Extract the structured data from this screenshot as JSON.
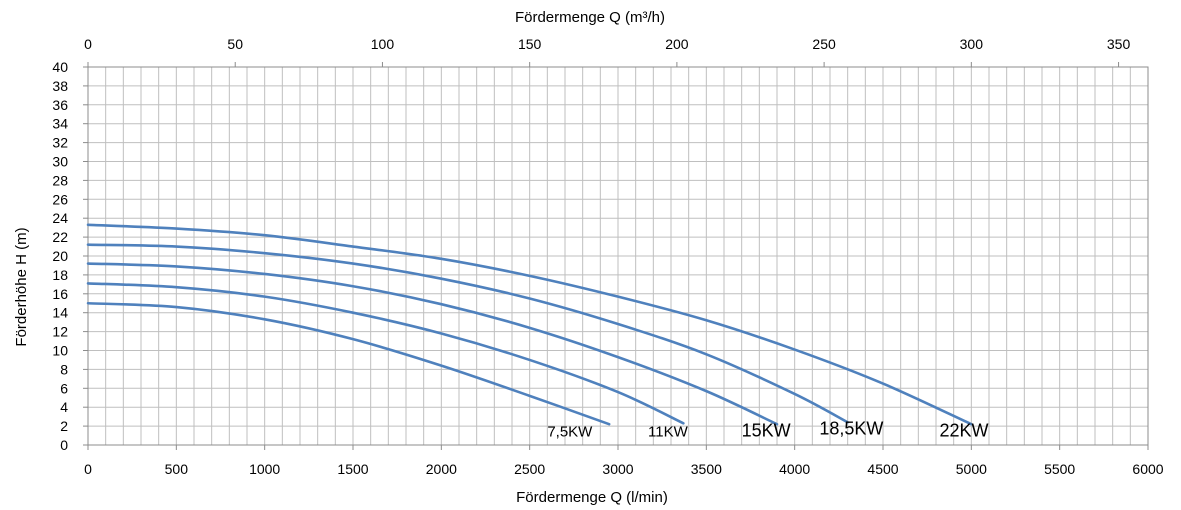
{
  "chart_data": {
    "type": "line",
    "title": "",
    "xlabel": "Fördermenge Q (l/min)",
    "x2label": "Fördermenge Q (m³/h)",
    "ylabel": "Förderhöhe H  (m)",
    "xlim": [
      0,
      6000
    ],
    "x2lim": [
      0,
      360
    ],
    "ylim": [
      0,
      40
    ],
    "x_ticks": [
      "0",
      "500",
      "1000",
      "1500",
      "2000",
      "2500",
      "3000",
      "3500",
      "4000",
      "4500",
      "5000",
      "5500",
      "6000"
    ],
    "x2_ticks": [
      "0",
      "50",
      "100",
      "150",
      "200",
      "250",
      "300",
      "350"
    ],
    "y_ticks": [
      "0",
      "2",
      "4",
      "6",
      "8",
      "10",
      "12",
      "14",
      "16",
      "18",
      "20",
      "22",
      "24",
      "26",
      "28",
      "30",
      "32",
      "34",
      "36",
      "38",
      "40"
    ],
    "grid": true,
    "line_color": "#4f81bd",
    "series": [
      {
        "name": "7,5KW",
        "x": [
          0,
          500,
          1000,
          1500,
          2000,
          2500,
          2950
        ],
        "y": [
          15,
          14.6,
          13.3,
          11.2,
          8.4,
          5.2,
          2.2
        ]
      },
      {
        "name": "11KW",
        "x": [
          0,
          500,
          1000,
          1500,
          2000,
          2500,
          3000,
          3370
        ],
        "y": [
          17.1,
          16.7,
          15.7,
          14,
          11.8,
          9,
          5.6,
          2.3
        ]
      },
      {
        "name": "15KW",
        "x": [
          0,
          500,
          1000,
          1500,
          2000,
          2500,
          3000,
          3500,
          3900
        ],
        "y": [
          19.2,
          18.9,
          18.1,
          16.8,
          14.9,
          12.4,
          9.3,
          5.7,
          2.2
        ]
      },
      {
        "name": "18,5KW",
        "x": [
          0,
          500,
          1000,
          1500,
          2000,
          2500,
          3000,
          3500,
          4000,
          4300
        ],
        "y": [
          21.2,
          21,
          20.3,
          19.2,
          17.6,
          15.5,
          12.8,
          9.6,
          5.4,
          2.4
        ]
      },
      {
        "name": "22KW",
        "x": [
          0,
          500,
          1000,
          1500,
          2000,
          2500,
          3000,
          3500,
          4000,
          4500,
          5000
        ],
        "y": [
          23.3,
          22.9,
          22.2,
          21,
          19.7,
          17.9,
          15.7,
          13.2,
          10.1,
          6.5,
          2.2
        ]
      }
    ],
    "labels": [
      {
        "text": "7,5KW",
        "x": 2600,
        "y": 0.9,
        "size": "small"
      },
      {
        "text": "11KW",
        "x": 3170,
        "y": 0.9,
        "size": "small"
      },
      {
        "text": "15KW",
        "x": 3700,
        "y": 0.9,
        "size": "large"
      },
      {
        "text": "18,5KW",
        "x": 4140,
        "y": 1.1,
        "size": "large"
      },
      {
        "text": "22KW",
        "x": 4820,
        "y": 0.9,
        "size": "large"
      }
    ]
  }
}
